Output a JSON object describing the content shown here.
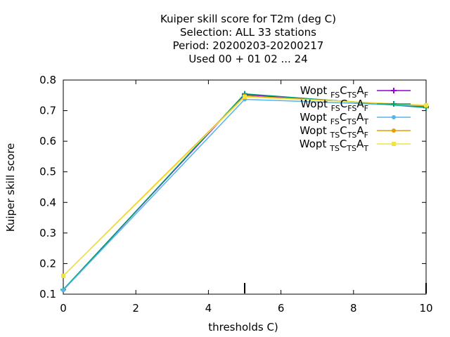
{
  "chart_data": {
    "type": "line",
    "title": [
      "Kuiper skill score  for T2m (deg C)",
      "Selection: ALL     33 stations",
      "Period: 20200203-20200217",
      "Used  00 + 01 02 ... 24"
    ],
    "xlabel": "thresholds C)",
    "ylabel": "Kuiper skill score",
    "xlim": [
      0,
      10
    ],
    "ylim": [
      0.1,
      0.8
    ],
    "xticks": [
      "0",
      "2",
      "4",
      "6",
      "8",
      "10"
    ],
    "yticks": [
      "0.1",
      "0.2",
      "0.3",
      "0.4",
      "0.5",
      "0.6",
      "0.7",
      "0.8"
    ],
    "legend_position": "top-right",
    "series": [
      {
        "name": "Wopt_FS C_TS A_F",
        "legend": {
          "base": "Wopt",
          "parts": [
            [
              "FS",
              "C"
            ],
            [
              "TS",
              "A"
            ],
            [
              "F",
              ""
            ]
          ]
        },
        "color": "#9400d3",
        "marker": "plus",
        "points": [
          [
            0,
            0.115
          ],
          [
            5,
            0.752
          ],
          [
            10,
            0.713
          ]
        ]
      },
      {
        "name": "Wopt_FS C_FS A_F",
        "legend": {
          "base": "Wopt",
          "parts": [
            [
              "FS",
              "C"
            ],
            [
              "FS",
              "A"
            ],
            [
              "F",
              ""
            ]
          ]
        },
        "color": "#009e73",
        "marker": "plus",
        "points": [
          [
            0,
            0.115
          ],
          [
            5,
            0.755
          ],
          [
            10,
            0.71
          ]
        ]
      },
      {
        "name": "Wopt_FS C_TS A_T",
        "legend": {
          "base": "Wopt",
          "parts": [
            [
              "FS",
              "C"
            ],
            [
              "TS",
              "A"
            ],
            [
              "T",
              ""
            ]
          ]
        },
        "color": "#56b4e9",
        "marker": "circle",
        "points": [
          [
            0,
            0.113
          ],
          [
            5,
            0.737
          ],
          [
            10,
            0.715
          ]
        ]
      },
      {
        "name": "Wopt_TS C_TS A_F",
        "legend": {
          "base": "Wopt",
          "parts": [
            [
              "TS",
              "C"
            ],
            [
              "TS",
              "A"
            ],
            [
              "F",
              ""
            ]
          ]
        },
        "color": "#e69f00",
        "marker": "circle",
        "points": [
          [
            0,
            0.16
          ],
          [
            5,
            0.748
          ],
          [
            10,
            0.716
          ]
        ]
      },
      {
        "name": "Wopt_TS C_TS A_T",
        "legend": {
          "base": "Wopt",
          "parts": [
            [
              "TS",
              "C"
            ],
            [
              "TS",
              "A"
            ],
            [
              "T",
              ""
            ]
          ]
        },
        "color": "#f0e442",
        "marker": "square",
        "points": [
          [
            0,
            0.16
          ],
          [
            5,
            0.745
          ],
          [
            10,
            0.718
          ]
        ]
      }
    ],
    "threshold_markers": [
      5,
      10
    ]
  }
}
